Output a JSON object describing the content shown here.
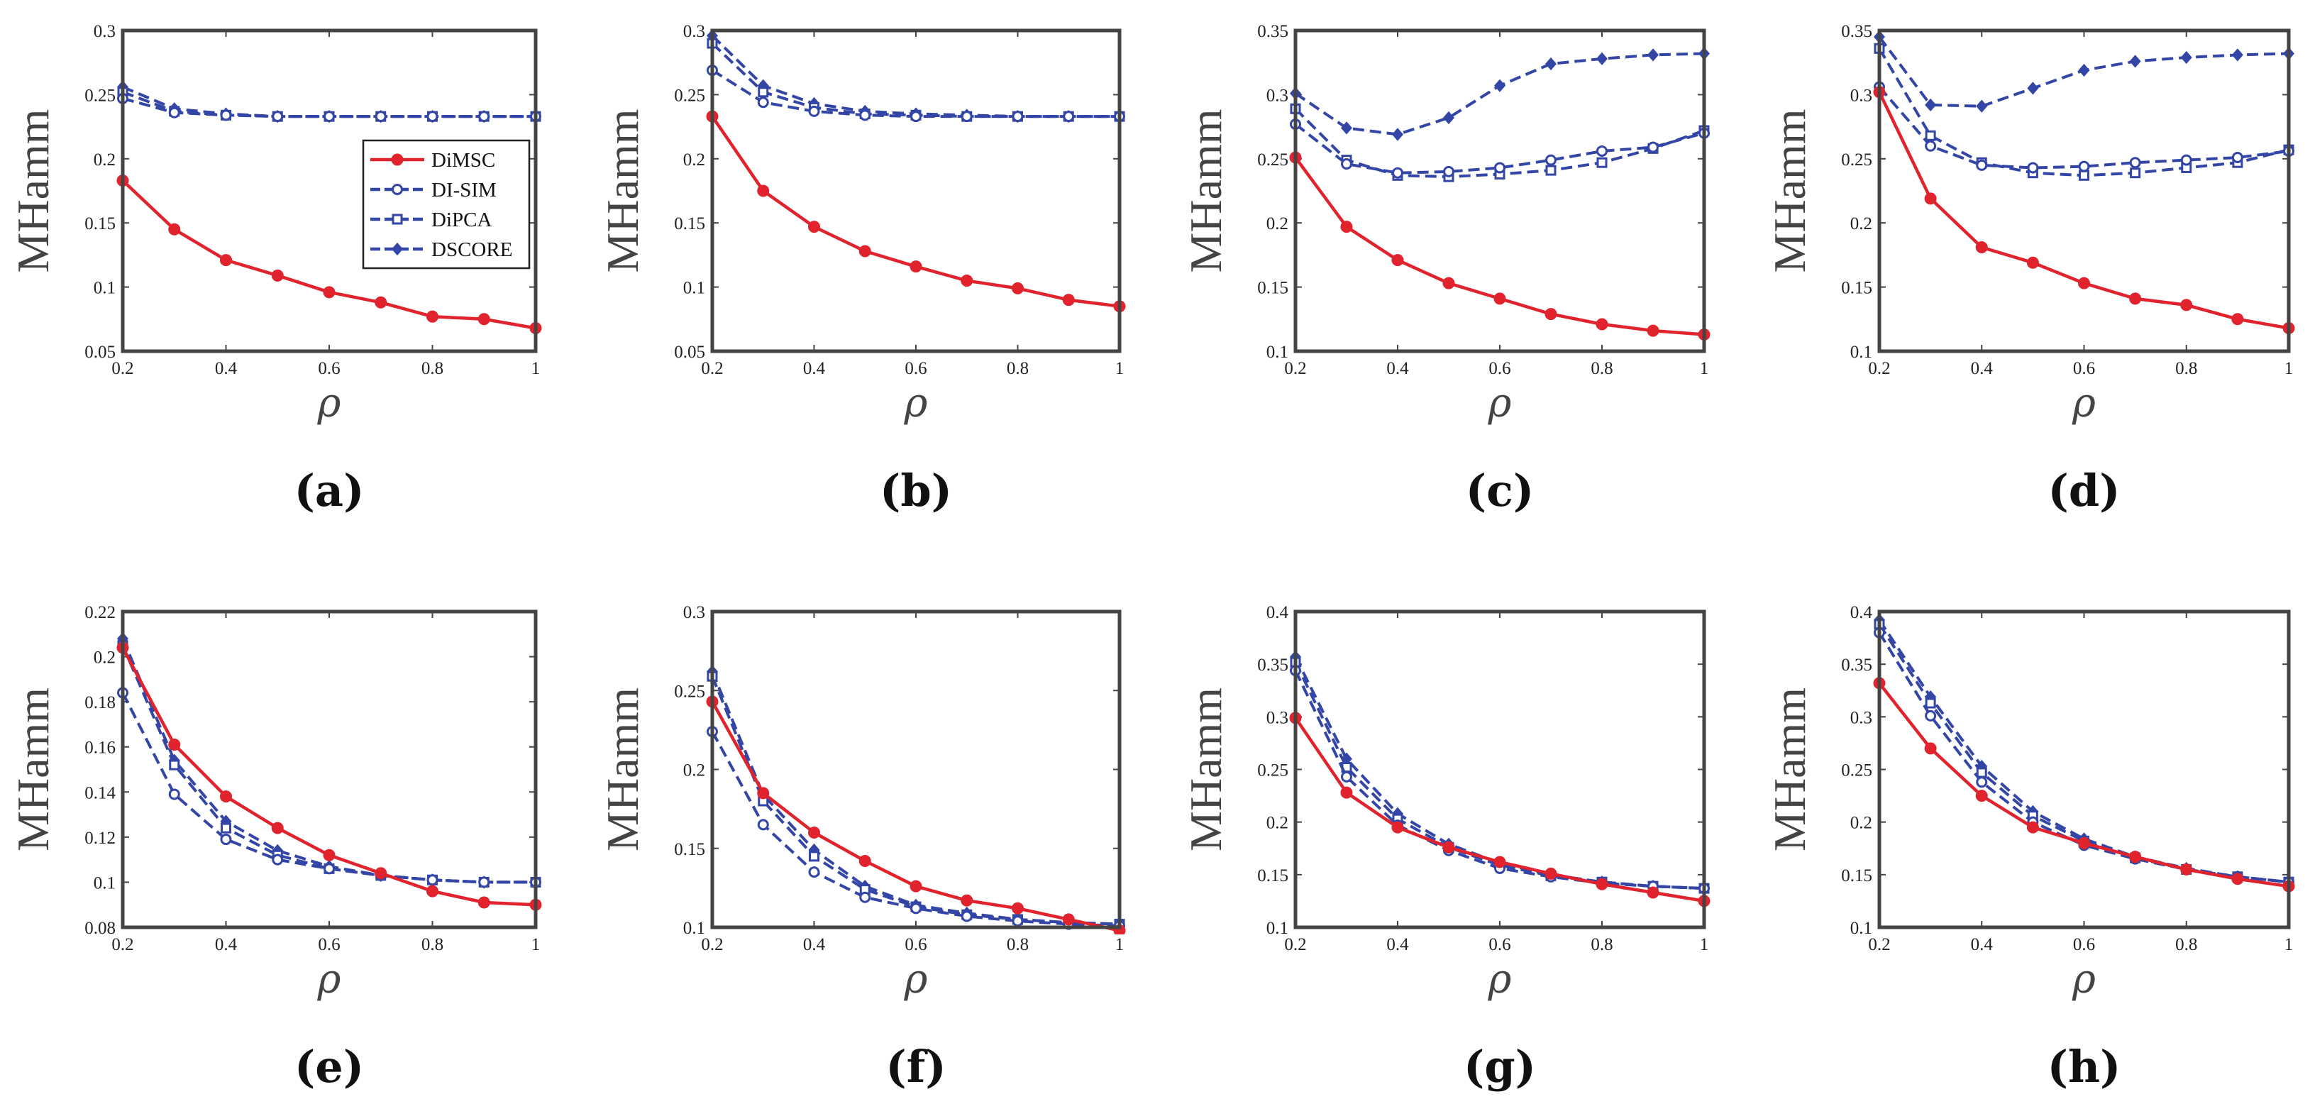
{
  "legend": [
    {
      "label": "DiMSC",
      "color": "#E0232D",
      "dash": "solid",
      "marker": "dot"
    },
    {
      "label": "DI-SIM",
      "color": "#3346A6",
      "dash": "dashed",
      "marker": "circle"
    },
    {
      "label": "DiPCA",
      "color": "#3346A6",
      "dash": "dashed",
      "marker": "square"
    },
    {
      "label": "DSCORE",
      "color": "#3346A6",
      "dash": "dashed",
      "marker": "diamond"
    }
  ],
  "chart_data": [
    {
      "type": "line",
      "panel": "(a)",
      "ylabel": "MHamm",
      "xlabel": "ρ",
      "x": [
        0.2,
        0.3,
        0.4,
        0.5,
        0.6,
        0.7,
        0.8,
        0.9,
        1.0
      ],
      "xlim": [
        0.2,
        1
      ],
      "xticks": [
        "0.2",
        "0.4",
        "0.6",
        "0.8",
        "1"
      ],
      "ylim": [
        0.05,
        0.3
      ],
      "yticks": [
        "0.05",
        "0.1",
        "0.15",
        "0.2",
        "0.25",
        "0.3"
      ],
      "legend_position": "right",
      "series": [
        {
          "name": "DiMSC",
          "values": [
            0.183,
            0.145,
            0.121,
            0.109,
            0.096,
            0.088,
            0.077,
            0.075,
            0.068
          ]
        },
        {
          "name": "DI-SIM",
          "values": [
            0.247,
            0.236,
            0.234,
            0.233,
            0.233,
            0.233,
            0.233,
            0.233,
            0.233
          ]
        },
        {
          "name": "DiPCA",
          "values": [
            0.252,
            0.237,
            0.234,
            0.233,
            0.233,
            0.233,
            0.233,
            0.233,
            0.233
          ]
        },
        {
          "name": "DSCORE",
          "values": [
            0.256,
            0.239,
            0.235,
            0.233,
            0.233,
            0.233,
            0.233,
            0.233,
            0.233
          ]
        }
      ]
    },
    {
      "type": "line",
      "panel": "(b)",
      "ylabel": "MHamm",
      "xlabel": "ρ",
      "x": [
        0.2,
        0.3,
        0.4,
        0.5,
        0.6,
        0.7,
        0.8,
        0.9,
        1.0
      ],
      "xlim": [
        0.2,
        1
      ],
      "xticks": [
        "0.2",
        "0.4",
        "0.6",
        "0.8",
        "1"
      ],
      "ylim": [
        0.05,
        0.3
      ],
      "yticks": [
        "0.05",
        "0.1",
        "0.15",
        "0.2",
        "0.25",
        "0.3"
      ],
      "series": [
        {
          "name": "DiMSC",
          "values": [
            0.233,
            0.175,
            0.147,
            0.128,
            0.116,
            0.105,
            0.099,
            0.09,
            0.085
          ]
        },
        {
          "name": "DI-SIM",
          "values": [
            0.269,
            0.244,
            0.237,
            0.234,
            0.233,
            0.233,
            0.233,
            0.233,
            0.233
          ]
        },
        {
          "name": "DiPCA",
          "values": [
            0.29,
            0.252,
            0.24,
            0.235,
            0.234,
            0.233,
            0.233,
            0.233,
            0.233
          ]
        },
        {
          "name": "DSCORE",
          "values": [
            0.296,
            0.257,
            0.243,
            0.237,
            0.235,
            0.234,
            0.233,
            0.233,
            0.233
          ]
        }
      ]
    },
    {
      "type": "line",
      "panel": "(c)",
      "ylabel": "MHamm",
      "xlabel": "ρ",
      "x": [
        0.2,
        0.3,
        0.4,
        0.5,
        0.6,
        0.7,
        0.8,
        0.9,
        1.0
      ],
      "xlim": [
        0.2,
        1
      ],
      "xticks": [
        "0.2",
        "0.4",
        "0.6",
        "0.8",
        "1"
      ],
      "ylim": [
        0.1,
        0.35
      ],
      "yticks": [
        "0.1",
        "0.15",
        "0.2",
        "0.25",
        "0.3",
        "0.35"
      ],
      "series": [
        {
          "name": "DiMSC",
          "values": [
            0.251,
            0.197,
            0.171,
            0.153,
            0.141,
            0.129,
            0.121,
            0.116,
            0.113
          ]
        },
        {
          "name": "DI-SIM",
          "values": [
            0.277,
            0.246,
            0.239,
            0.24,
            0.243,
            0.249,
            0.256,
            0.259,
            0.27
          ]
        },
        {
          "name": "DiPCA",
          "values": [
            0.289,
            0.249,
            0.237,
            0.236,
            0.238,
            0.241,
            0.247,
            0.258,
            0.272
          ]
        },
        {
          "name": "DSCORE",
          "values": [
            0.301,
            0.274,
            0.269,
            0.282,
            0.307,
            0.324,
            0.328,
            0.331,
            0.332
          ]
        }
      ]
    },
    {
      "type": "line",
      "panel": "(d)",
      "ylabel": "MHamm",
      "xlabel": "ρ",
      "x": [
        0.2,
        0.3,
        0.4,
        0.5,
        0.6,
        0.7,
        0.8,
        0.9,
        1.0
      ],
      "xlim": [
        0.2,
        1
      ],
      "xticks": [
        "0.2",
        "0.4",
        "0.6",
        "0.8",
        "1"
      ],
      "ylim": [
        0.1,
        0.35
      ],
      "yticks": [
        "0.1",
        "0.15",
        "0.2",
        "0.25",
        "0.3",
        "0.35"
      ],
      "series": [
        {
          "name": "DiMSC",
          "values": [
            0.302,
            0.219,
            0.181,
            0.169,
            0.153,
            0.141,
            0.136,
            0.125,
            0.118
          ]
        },
        {
          "name": "DI-SIM",
          "values": [
            0.306,
            0.26,
            0.245,
            0.243,
            0.244,
            0.247,
            0.249,
            0.251,
            0.256
          ]
        },
        {
          "name": "DiPCA",
          "values": [
            0.336,
            0.268,
            0.247,
            0.239,
            0.237,
            0.239,
            0.243,
            0.247,
            0.257
          ]
        },
        {
          "name": "DSCORE",
          "values": [
            0.345,
            0.292,
            0.291,
            0.305,
            0.319,
            0.326,
            0.329,
            0.331,
            0.332
          ]
        }
      ]
    },
    {
      "type": "line",
      "panel": "(e)",
      "ylabel": "MHamm",
      "xlabel": "ρ",
      "x": [
        0.2,
        0.3,
        0.4,
        0.5,
        0.6,
        0.7,
        0.8,
        0.9,
        1.0
      ],
      "xlim": [
        0.2,
        1
      ],
      "xticks": [
        "0.2",
        "0.4",
        "0.6",
        "0.8",
        "1"
      ],
      "ylim": [
        0.08,
        0.22
      ],
      "yticks": [
        "0.08",
        "0.1",
        "0.12",
        "0.14",
        "0.16",
        "0.18",
        "0.2",
        "0.22"
      ],
      "series": [
        {
          "name": "DiMSC",
          "values": [
            0.204,
            0.161,
            0.138,
            0.124,
            0.112,
            0.104,
            0.096,
            0.091,
            0.09
          ]
        },
        {
          "name": "DI-SIM",
          "values": [
            0.184,
            0.139,
            0.119,
            0.11,
            0.106,
            0.103,
            0.101,
            0.1,
            0.1
          ]
        },
        {
          "name": "DiPCA",
          "values": [
            0.205,
            0.152,
            0.124,
            0.112,
            0.106,
            0.103,
            0.101,
            0.1,
            0.1
          ]
        },
        {
          "name": "DSCORE",
          "values": [
            0.208,
            0.154,
            0.127,
            0.114,
            0.107,
            0.103,
            0.101,
            0.1,
            0.1
          ]
        }
      ]
    },
    {
      "type": "line",
      "panel": "(f)",
      "ylabel": "MHamm",
      "xlabel": "ρ",
      "x": [
        0.2,
        0.3,
        0.4,
        0.5,
        0.6,
        0.7,
        0.8,
        0.9,
        1.0
      ],
      "xlim": [
        0.2,
        1
      ],
      "xticks": [
        "0.2",
        "0.4",
        "0.6",
        "0.8",
        "1"
      ],
      "ylim": [
        0.1,
        0.3
      ],
      "yticks": [
        "0.1",
        "0.15",
        "0.2",
        "0.25",
        "0.3"
      ],
      "series": [
        {
          "name": "DiMSC",
          "values": [
            0.243,
            0.185,
            0.16,
            0.142,
            0.126,
            0.117,
            0.112,
            0.105,
            0.098
          ]
        },
        {
          "name": "DI-SIM",
          "values": [
            0.224,
            0.165,
            0.135,
            0.119,
            0.112,
            0.107,
            0.104,
            0.102,
            0.101
          ]
        },
        {
          "name": "DiPCA",
          "values": [
            0.259,
            0.18,
            0.145,
            0.124,
            0.113,
            0.108,
            0.105,
            0.103,
            0.102
          ]
        },
        {
          "name": "DSCORE",
          "values": [
            0.262,
            0.184,
            0.149,
            0.126,
            0.114,
            0.109,
            0.105,
            0.103,
            0.102
          ]
        }
      ]
    },
    {
      "type": "line",
      "panel": "(g)",
      "ylabel": "MHamm",
      "xlabel": "ρ",
      "x": [
        0.2,
        0.3,
        0.4,
        0.5,
        0.6,
        0.7,
        0.8,
        0.9,
        1.0
      ],
      "xlim": [
        0.2,
        1
      ],
      "xticks": [
        "0.2",
        "0.4",
        "0.6",
        "0.8",
        "1"
      ],
      "ylim": [
        0.1,
        0.4
      ],
      "yticks": [
        "0.1",
        "0.15",
        "0.2",
        "0.25",
        "0.3",
        "0.35",
        "0.4"
      ],
      "series": [
        {
          "name": "DiMSC",
          "values": [
            0.299,
            0.228,
            0.195,
            0.176,
            0.162,
            0.151,
            0.141,
            0.133,
            0.125
          ]
        },
        {
          "name": "DI-SIM",
          "values": [
            0.344,
            0.243,
            0.197,
            0.173,
            0.156,
            0.148,
            0.142,
            0.139,
            0.137
          ]
        },
        {
          "name": "DiPCA",
          "values": [
            0.352,
            0.252,
            0.203,
            0.176,
            0.159,
            0.149,
            0.143,
            0.139,
            0.137
          ]
        },
        {
          "name": "DSCORE",
          "values": [
            0.357,
            0.26,
            0.208,
            0.179,
            0.161,
            0.15,
            0.143,
            0.139,
            0.137
          ]
        }
      ]
    },
    {
      "type": "line",
      "panel": "(h)",
      "ylabel": "MHamm",
      "xlabel": "ρ",
      "x": [
        0.2,
        0.3,
        0.4,
        0.5,
        0.6,
        0.7,
        0.8,
        0.9,
        1.0
      ],
      "xlim": [
        0.2,
        1
      ],
      "xticks": [
        "0.2",
        "0.4",
        "0.6",
        "0.8",
        "1"
      ],
      "ylim": [
        0.1,
        0.4
      ],
      "yticks": [
        "0.1",
        "0.15",
        "0.2",
        "0.25",
        "0.3",
        "0.35",
        "0.4"
      ],
      "series": [
        {
          "name": "DiMSC",
          "values": [
            0.332,
            0.27,
            0.225,
            0.195,
            0.18,
            0.167,
            0.155,
            0.146,
            0.139
          ]
        },
        {
          "name": "DI-SIM",
          "values": [
            0.38,
            0.301,
            0.238,
            0.2,
            0.178,
            0.165,
            0.155,
            0.148,
            0.143
          ]
        },
        {
          "name": "DiPCA",
          "values": [
            0.388,
            0.313,
            0.247,
            0.206,
            0.182,
            0.166,
            0.155,
            0.148,
            0.143
          ]
        },
        {
          "name": "DSCORE",
          "values": [
            0.392,
            0.319,
            0.253,
            0.21,
            0.184,
            0.167,
            0.156,
            0.148,
            0.143
          ]
        }
      ]
    }
  ]
}
